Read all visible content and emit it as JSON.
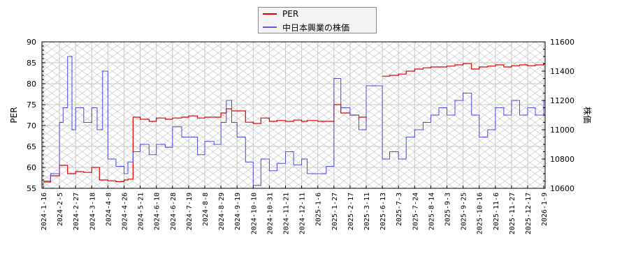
{
  "legend": {
    "items": [
      {
        "label": "PER",
        "color": "#dd0000"
      },
      {
        "label": "中日本興業の株価",
        "color": "#4a4adf"
      }
    ]
  },
  "axes": {
    "left_label": "PER",
    "right_label": "株価",
    "left_ticks": [
      "90",
      "85",
      "80",
      "75",
      "70",
      "65",
      "60",
      "55"
    ],
    "right_ticks": [
      "11600",
      "11400",
      "11200",
      "11000",
      "10800",
      "10600"
    ]
  },
  "chart_data": {
    "type": "line",
    "title": "",
    "xlabel": "",
    "ylabel": "PER",
    "y2label": "株価",
    "ylim": [
      55,
      90
    ],
    "y2lim": [
      10600,
      11600
    ],
    "grid": true,
    "legend_position": "top-center",
    "x_tick_labels": [
      "2024-1-16",
      "2024-2-5",
      "2024-2-27",
      "2024-3-18",
      "2024-4-8",
      "2024-4-26",
      "2024-5-21",
      "2024-6-10",
      "2024-6-28",
      "2024-7-19",
      "2024-8-8",
      "2024-8-29",
      "2024-9-19",
      "2024-10-10",
      "2024-10-31",
      "2024-11-21",
      "2024-12-11",
      "2025-1-6",
      "2025-1-27",
      "2025-2-17",
      "2025-3-11",
      "2025-6-13",
      "2025-7-3",
      "2025-7-24",
      "2025-8-14",
      "2025-9-3",
      "2025-9-25",
      "2025-10-16",
      "2025-11-6",
      "2025-11-27",
      "2025-12-17",
      "2026-1-9"
    ],
    "series": [
      {
        "name": "PER",
        "axis": "left",
        "color": "#dd0000",
        "x": [
          "2024-1-16",
          "2024-1-25",
          "2024-2-5",
          "2024-2-16",
          "2024-2-27",
          "2024-3-8",
          "2024-3-18",
          "2024-3-28",
          "2024-4-8",
          "2024-4-17",
          "2024-4-26",
          "2024-5-2",
          "2024-5-10",
          "2024-5-21",
          "2024-6-1",
          "2024-6-10",
          "2024-6-20",
          "2024-6-28",
          "2024-7-10",
          "2024-7-19",
          "2024-7-30",
          "2024-8-8",
          "2024-8-20",
          "2024-8-29",
          "2024-9-5",
          "2024-9-12",
          "2024-9-19",
          "2024-9-30",
          "2024-10-10",
          "2024-10-20",
          "2024-10-31",
          "2024-11-10",
          "2024-11-21",
          "2024-12-1",
          "2024-12-11",
          "2024-12-20",
          "2025-1-6",
          "2025-1-17",
          "2025-1-27",
          "2025-2-5",
          "2025-2-17",
          "2025-3-1",
          "2025-3-11",
          "2025-6-13",
          "2025-6-22",
          "2025-7-3",
          "2025-7-13",
          "2025-7-24",
          "2025-8-4",
          "2025-8-14",
          "2025-8-24",
          "2025-9-3",
          "2025-9-14",
          "2025-9-25",
          "2025-10-6",
          "2025-10-16",
          "2025-10-27",
          "2025-11-6",
          "2025-11-17",
          "2025-11-27",
          "2025-12-7",
          "2025-12-17",
          "2025-12-28",
          "2026-1-9"
        ],
        "values": [
          56.5,
          58.0,
          60.5,
          58.5,
          59.0,
          58.8,
          60.0,
          57.0,
          56.8,
          56.6,
          57.0,
          57.2,
          72.0,
          71.5,
          71.0,
          71.8,
          71.5,
          71.8,
          72.0,
          72.3,
          71.8,
          72.0,
          72.0,
          73.0,
          74.0,
          73.5,
          73.5,
          70.8,
          70.5,
          71.8,
          71.0,
          71.2,
          71.0,
          71.3,
          71.0,
          71.2,
          71.0,
          71.0,
          75.0,
          73.0,
          72.5,
          72.0,
          71.0,
          81.8,
          82.0,
          82.3,
          83.0,
          83.5,
          83.8,
          84.0,
          84.0,
          84.2,
          84.5,
          84.8,
          83.5,
          84.0,
          84.2,
          84.5,
          84.0,
          84.3,
          84.5,
          84.3,
          84.5,
          85.0
        ]
      },
      {
        "name": "中日本興業の株価",
        "axis": "right",
        "color": "#4a4adf",
        "x": [
          "2024-1-16",
          "2024-1-25",
          "2024-2-5",
          "2024-2-10",
          "2024-2-16",
          "2024-2-22",
          "2024-2-27",
          "2024-3-8",
          "2024-3-18",
          "2024-3-25",
          "2024-4-1",
          "2024-4-8",
          "2024-4-17",
          "2024-4-26",
          "2024-5-2",
          "2024-5-10",
          "2024-5-21",
          "2024-6-1",
          "2024-6-10",
          "2024-6-20",
          "2024-6-28",
          "2024-7-10",
          "2024-7-19",
          "2024-7-30",
          "2024-8-8",
          "2024-8-20",
          "2024-8-29",
          "2024-9-5",
          "2024-9-12",
          "2024-9-19",
          "2024-9-30",
          "2024-10-10",
          "2024-10-20",
          "2024-10-31",
          "2024-11-10",
          "2024-11-21",
          "2024-12-1",
          "2024-12-11",
          "2024-12-20",
          "2025-1-6",
          "2025-1-17",
          "2025-1-27",
          "2025-2-5",
          "2025-2-17",
          "2025-3-1",
          "2025-3-11",
          "2025-6-13",
          "2025-6-22",
          "2025-7-3",
          "2025-7-13",
          "2025-7-24",
          "2025-8-4",
          "2025-8-14",
          "2025-8-24",
          "2025-9-3",
          "2025-9-14",
          "2025-9-25",
          "2025-10-6",
          "2025-10-16",
          "2025-10-27",
          "2025-11-6",
          "2025-11-17",
          "2025-11-27",
          "2025-12-7",
          "2025-12-17",
          "2025-12-28",
          "2026-1-9"
        ],
        "values": [
          10650,
          10700,
          11050,
          11150,
          11500,
          11000,
          11150,
          11050,
          11150,
          11000,
          11400,
          10800,
          10750,
          10700,
          10780,
          10850,
          10900,
          10830,
          10900,
          10880,
          11020,
          10950,
          10950,
          10830,
          10920,
          10900,
          11050,
          11200,
          11050,
          10950,
          10780,
          10620,
          10800,
          10720,
          10770,
          10850,
          10760,
          10800,
          10700,
          10700,
          10750,
          11350,
          11150,
          11100,
          11000,
          11300,
          10800,
          10850,
          10800,
          10950,
          11000,
          11050,
          11100,
          11150,
          11100,
          11200,
          11250,
          11100,
          10950,
          11000,
          11150,
          11100,
          11200,
          11100,
          11150,
          11100,
          11200
        ]
      }
    ]
  }
}
